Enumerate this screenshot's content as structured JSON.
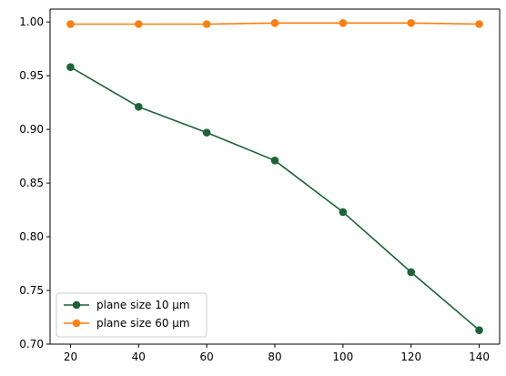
{
  "chart_data": {
    "type": "line",
    "title": "",
    "xlabel": "",
    "ylabel": "",
    "x": [
      20,
      40,
      60,
      80,
      100,
      120,
      140
    ],
    "xlim": [
      14,
      146
    ],
    "ylim": [
      0.7,
      1.012
    ],
    "xticks": [
      "20",
      "40",
      "60",
      "80",
      "100",
      "120",
      "140"
    ],
    "yticks": [
      "0.70",
      "0.75",
      "0.80",
      "0.85",
      "0.90",
      "0.95",
      "1.00"
    ],
    "grid": false,
    "legend_position": "lower-left",
    "series": [
      {
        "name": "plane size 10 µm",
        "color": "#1b6436",
        "marker": "circle",
        "values": [
          0.958,
          0.921,
          0.897,
          0.871,
          0.823,
          0.767,
          0.713
        ]
      },
      {
        "name": "plane size 60 µm",
        "color": "#ff7f0e",
        "marker": "circle",
        "values": [
          0.998,
          0.998,
          0.998,
          0.999,
          0.999,
          0.999,
          0.998
        ]
      }
    ]
  }
}
